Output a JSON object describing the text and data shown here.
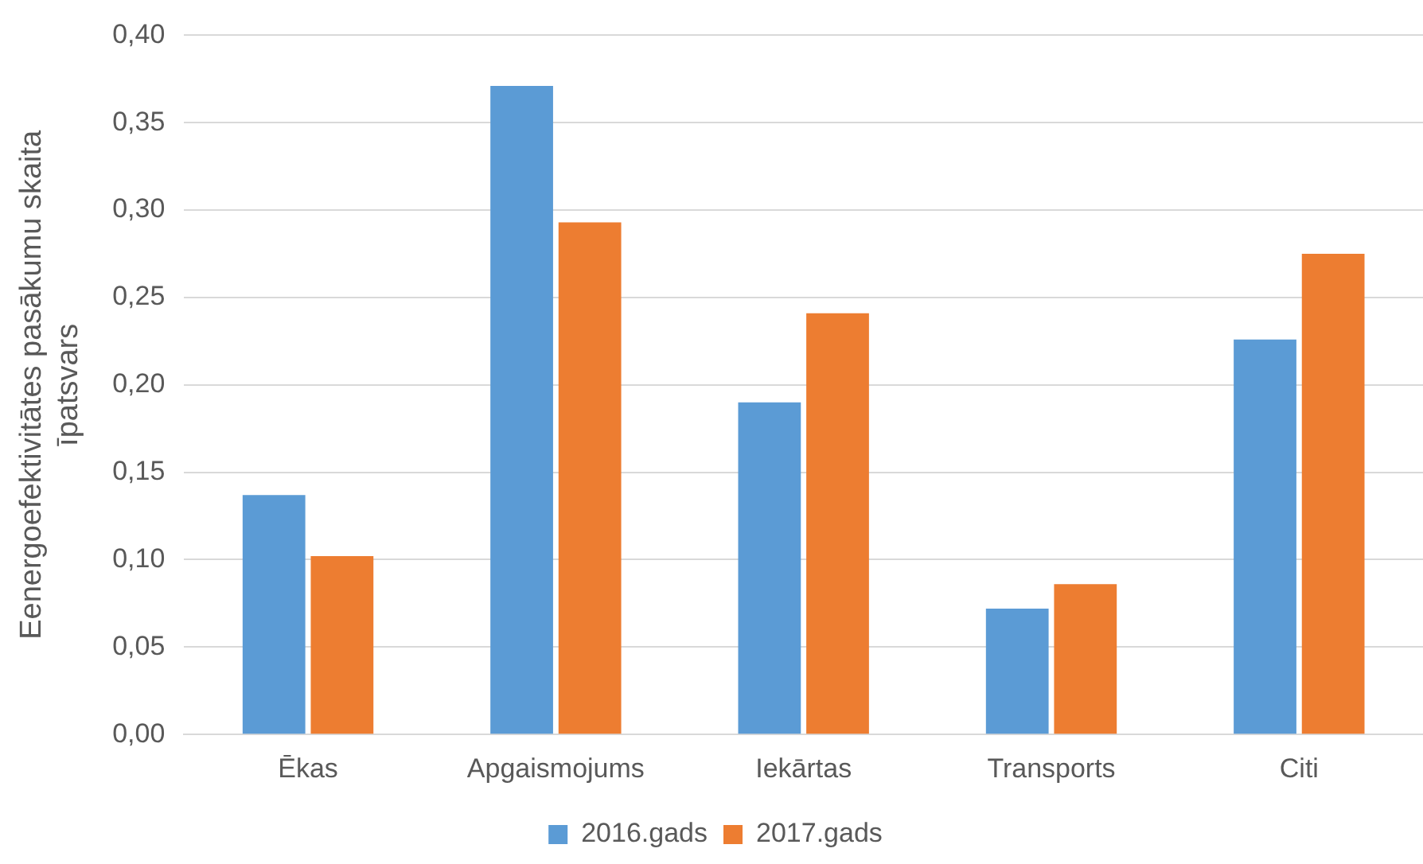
{
  "chart_data": {
    "type": "bar",
    "ylabel": "Eenergoefektivitātes pasākumu skaita īpatsvars",
    "categories": [
      "Ēkas",
      "Apgaismojums",
      "Iekārtas",
      "Transports",
      "Citi"
    ],
    "series": [
      {
        "name": "2016.gads",
        "color": "#5b9bd5",
        "values": [
          0.137,
          0.371,
          0.19,
          0.072,
          0.226
        ]
      },
      {
        "name": "2017.gads",
        "color": "#ed7d31",
        "values": [
          0.102,
          0.293,
          0.241,
          0.086,
          0.275
        ]
      }
    ],
    "ylim": [
      0,
      0.4
    ],
    "yticks": [
      {
        "value": 0,
        "label": "0,00"
      },
      {
        "value": 0.05,
        "label": "0,05"
      },
      {
        "value": 0.1,
        "label": "0,10"
      },
      {
        "value": 0.15,
        "label": "0,15"
      },
      {
        "value": 0.2,
        "label": "0,20"
      },
      {
        "value": 0.25,
        "label": "0,25"
      },
      {
        "value": 0.3,
        "label": "0,30"
      },
      {
        "value": 0.35,
        "label": "0,35"
      },
      {
        "value": 0.4,
        "label": "0,40"
      }
    ],
    "grid": "y",
    "legend": "bottom"
  }
}
